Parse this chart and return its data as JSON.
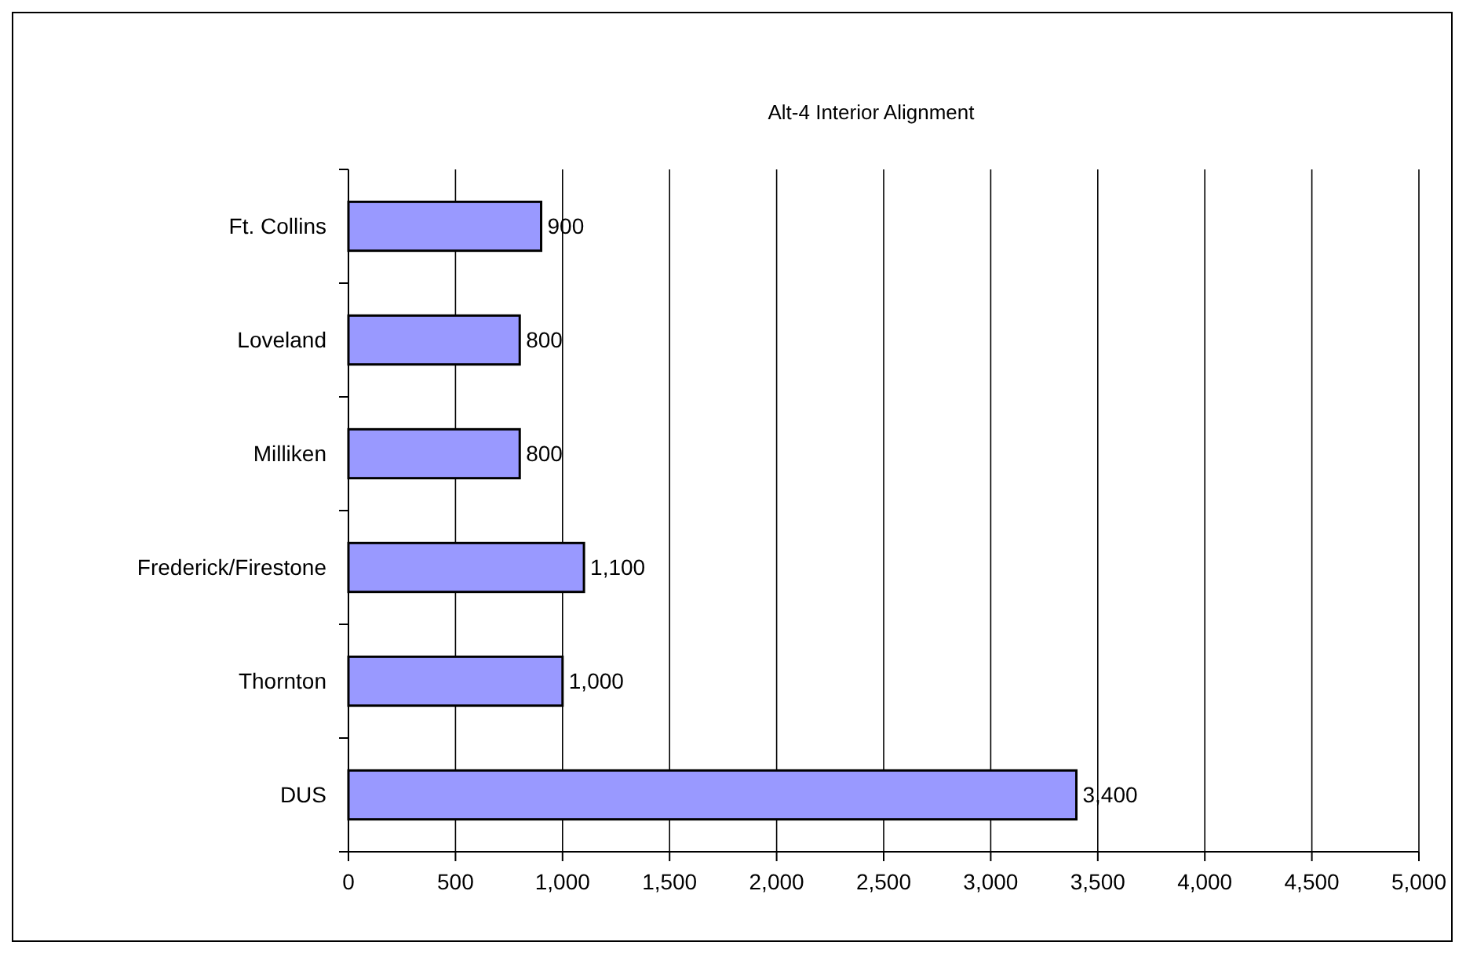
{
  "chart_data": {
    "type": "bar",
    "orientation": "horizontal",
    "title": "Alt-4 Interior Alignment",
    "categories": [
      "Ft. Collins",
      "Loveland",
      "Milliken",
      "Frederick/Firestone",
      "Thornton",
      "DUS"
    ],
    "values": [
      900,
      800,
      800,
      1100,
      1000,
      3400
    ],
    "value_labels": [
      "900",
      "800",
      "800",
      "1,100",
      "1,000",
      "3,400"
    ],
    "color": "#9999ff",
    "xlim": [
      0,
      5000
    ],
    "xticks": [
      0,
      {
        "value": 500,
        "label": "500"
      },
      {
        "value": 1000,
        "label": "1,000"
      },
      {
        "value": 1500,
        "label": "1,500"
      },
      {
        "value": 2000,
        "label": "2,000"
      },
      {
        "value": 2500,
        "label": "2,500"
      },
      {
        "value": 3000,
        "label": "3,000"
      },
      {
        "value": 3500,
        "label": "3,500"
      },
      {
        "value": 4000,
        "label": "4,000"
      },
      {
        "value": 4500,
        "label": "4,500"
      },
      {
        "value": 5000,
        "label": "5,000"
      }
    ],
    "grid": "x"
  }
}
